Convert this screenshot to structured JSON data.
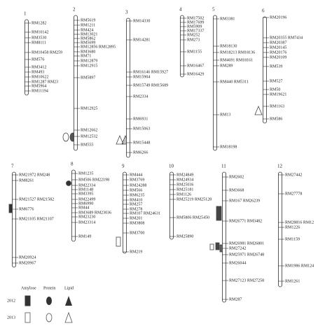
{
  "chromosomes": [
    {
      "number": "1",
      "markers": [
        "RM1282",
        "RM10142",
        "RM3530",
        "RM8111",
        "RM10458 RM259",
        "RM576",
        "RM3412",
        "RM493",
        "RM10622",
        "RM1287 RM23",
        "RM5964",
        "RM11194"
      ]
    },
    {
      "number": "2",
      "markers": [
        "RM5619",
        "RM1211",
        "RM424",
        "RM13021",
        "RM5862",
        "RM5699",
        "RM12856 RM12895",
        "RM3680",
        "RM71",
        "RM12879",
        "RM12915",
        "RM5897",
        "RM12925",
        "RM12662",
        "RM12532",
        "RM555"
      ]
    },
    {
      "number": "3",
      "markers": [
        "RM14330",
        "RM14281",
        "RM16146 RM15927",
        "RM15904",
        "RM15749 RM15689",
        "RM2334",
        "RM6931",
        "RM15063",
        "RM15448",
        "RM6266"
      ]
    },
    {
      "number": "4",
      "markers": [
        "RM17502",
        "RM17699",
        "RM5909",
        "RM17337",
        "RM252",
        "RM273",
        "RM1155",
        "RM16467",
        "RM16429"
      ]
    },
    {
      "number": "5",
      "markers": [
        "RM3381",
        "RM18130",
        "RM18213 RM18136",
        "RM4691 RM18161",
        "RM289",
        "RM440 RM5311",
        "RM13",
        "RM18198"
      ]
    },
    {
      "number": "6",
      "markers": [
        "RM20196",
        "RM20355 RM7434",
        "RM20387",
        "RM20145",
        "RM20176",
        "RM20109",
        "RM539",
        "RM527",
        "RM50",
        "RM19621",
        "RM1163",
        "RM586"
      ]
    },
    {
      "number": "7",
      "markers": [
        "RM21972 RM248",
        "RM8261",
        "RM21527 RM21582",
        "RM6776",
        "RM21105 RM21107",
        "RM20924",
        "RM20967"
      ]
    },
    {
      "number": "8",
      "markers": [
        "RM1235",
        "RM506 RM22198",
        "RM22334",
        "RM1148",
        "RM3395",
        "RM22499",
        "RM6990",
        "RM44",
        "RM3689 RM23036",
        "RM23230",
        "RM23314",
        "RM149"
      ]
    },
    {
      "number": "9",
      "markers": [
        "RM444",
        "RM3769",
        "RM24288",
        "RM566",
        "RM6235",
        "RM410",
        "RM257",
        "RM278",
        "RM107 RM24631",
        "RM201",
        "RM3808",
        "RM3700",
        "RM219"
      ]
    },
    {
      "number": "10",
      "markers": [
        "RM24849",
        "RM24934",
        "RM25036",
        "RM25181",
        "RM1126",
        "RM25219 RM25128",
        "RM5806 RM25450",
        "RM25890"
      ]
    },
    {
      "number": "11",
      "markers": [
        "RM2602",
        "RM3668",
        "RM167 RM26239",
        "RM26771 RM3482",
        "RM26981 RM26801",
        "RM27242",
        "RM25971 RM26748",
        "RM26044",
        "RM27123 RM27258",
        "RM287"
      ]
    },
    {
      "number": "12",
      "markers": [
        "RM27442",
        "RM27778",
        "RM28816 RM12",
        "RM1226",
        "RM1159",
        "RM1986 RM124",
        "RM1261"
      ]
    }
  ],
  "legend": {
    "traits": [
      "Amylose",
      "Protein",
      "Lipid"
    ],
    "years": [
      "2012",
      "2013"
    ]
  }
}
